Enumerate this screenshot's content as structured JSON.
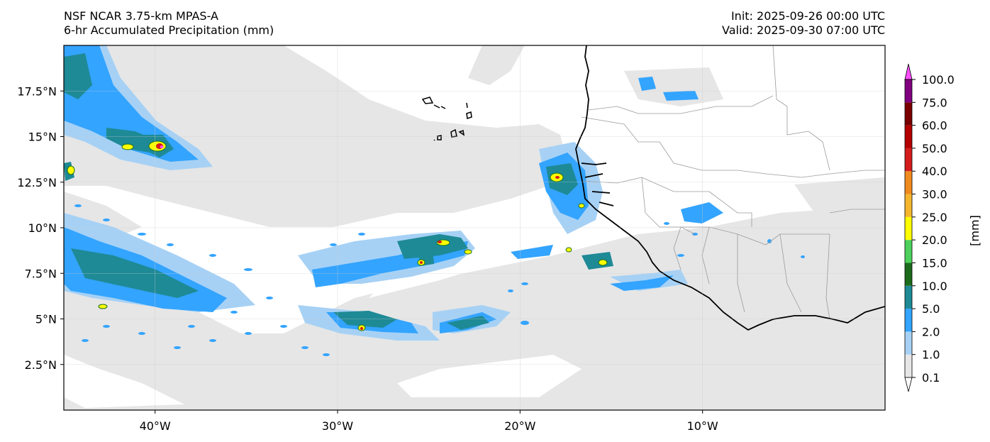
{
  "header": {
    "model": "NSF NCAR 3.75-km MPAS-A",
    "field": "6-hr Accumulated Precipitation (mm)",
    "init": "Init: 2025-09-26 00:00 UTC",
    "valid": "Valid: 2025-09-30 07:00 UTC"
  },
  "map": {
    "lon_range": [
      -45,
      0
    ],
    "lat_range": [
      0,
      20
    ],
    "lat_ticks": [
      {
        "value": 17.5,
        "label": "17.5°N"
      },
      {
        "value": 15,
        "label": "15°N"
      },
      {
        "value": 12.5,
        "label": "12.5°N"
      },
      {
        "value": 10,
        "label": "10°N"
      },
      {
        "value": 7.5,
        "label": "7.5°N"
      },
      {
        "value": 5,
        "label": "5°N"
      },
      {
        "value": 2.5,
        "label": "2.5°N"
      }
    ],
    "lon_ticks": [
      {
        "value": -40,
        "label": "40°W"
      },
      {
        "value": -30,
        "label": "30°W"
      },
      {
        "value": -20,
        "label": "20°W"
      },
      {
        "value": -10,
        "label": "10°W"
      }
    ],
    "gridlines": true
  },
  "colorbar": {
    "unit_label": "[mm]",
    "levels": [
      "0.1",
      "1.0",
      "2.0",
      "5.0",
      "10.0",
      "15.0",
      "20.0",
      "25.0",
      "30.0",
      "40.0",
      "50.0",
      "60.0",
      "75.0",
      "100.0"
    ],
    "colors": [
      "#e6e6e6",
      "#a6d1f5",
      "#33a4ff",
      "#1e8a96",
      "#1c6b1c",
      "#4dd15c",
      "#ffff00",
      "#f5b62e",
      "#f08a1e",
      "#d41c1c",
      "#b30000",
      "#7a0000",
      "#800080",
      "#ff4dff"
    ]
  }
}
